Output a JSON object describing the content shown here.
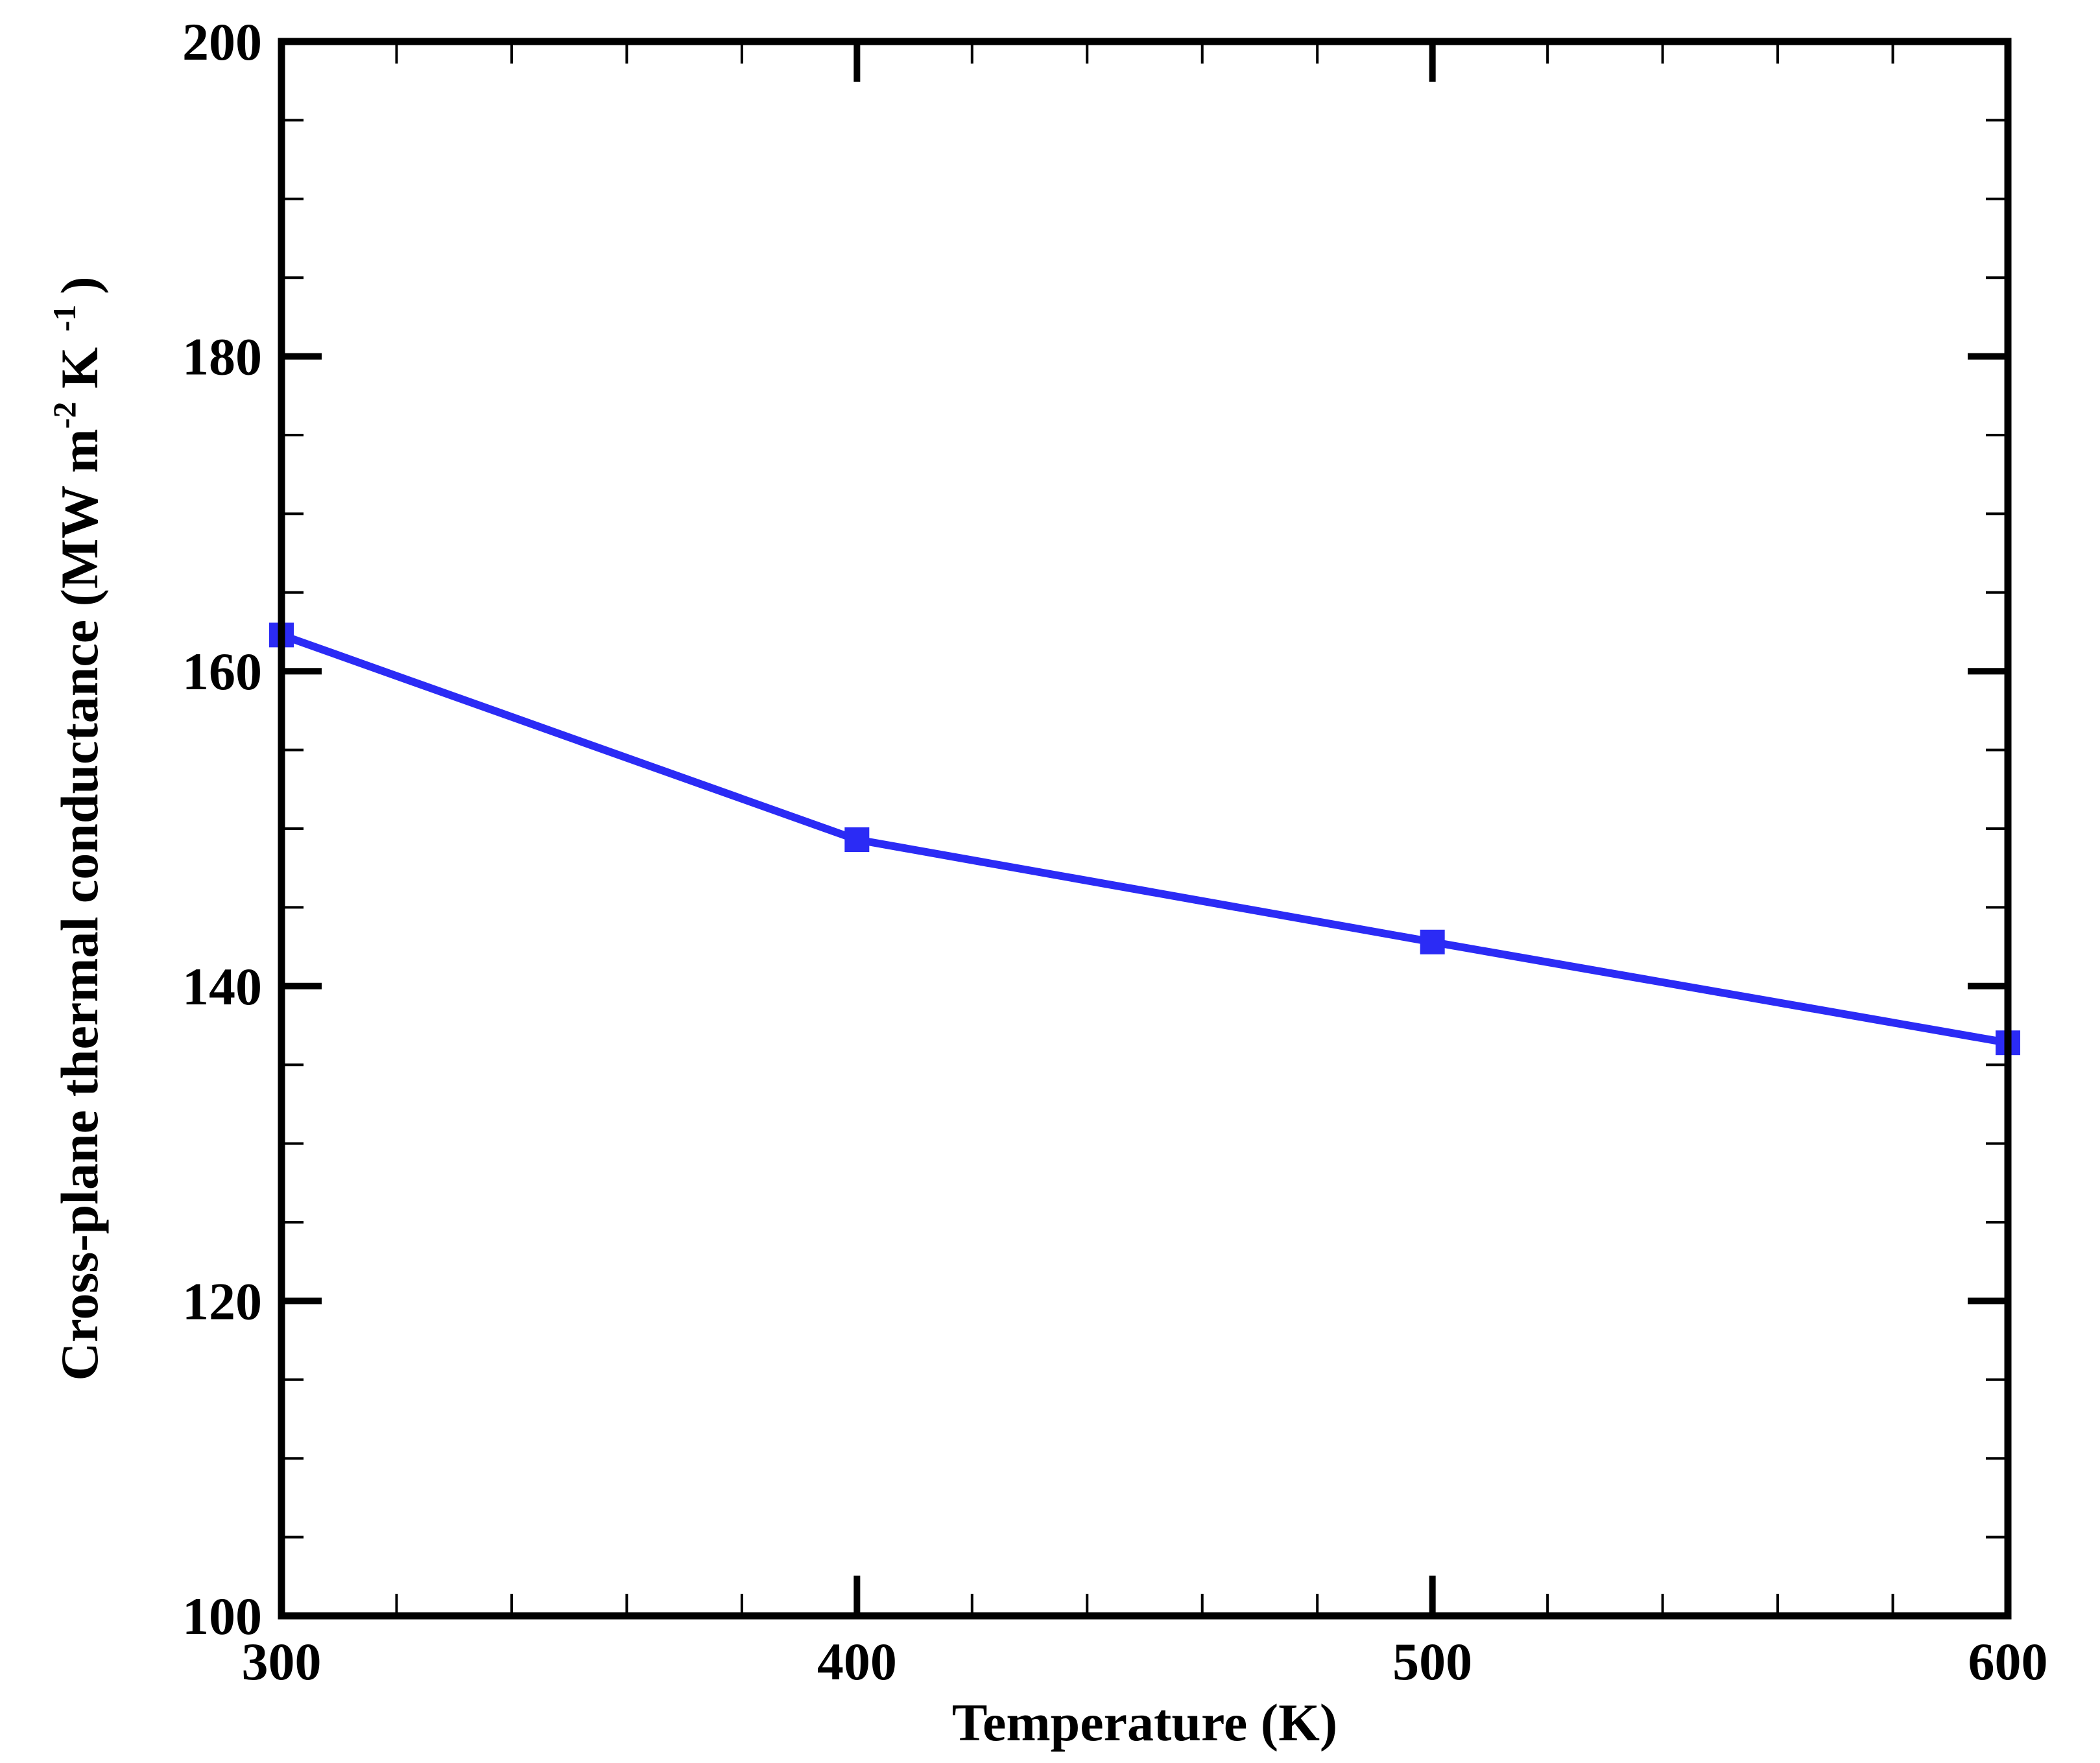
{
  "chart_data": {
    "type": "line",
    "x_axis": {
      "label": "Temperature (K)",
      "range": [
        300,
        600
      ],
      "ticks": [
        300,
        400,
        500,
        600
      ],
      "tick_labels": [
        "300",
        "400",
        "500",
        "600"
      ],
      "minor_step": 20
    },
    "y_axis": {
      "label_main": "Cross-plane thermal conductance (MW m",
      "label_sup1": "-2",
      "label_mid": " K",
      "label_sup2": "-1",
      "label_end": ")",
      "range": [
        100,
        200
      ],
      "ticks": [
        100,
        120,
        140,
        160,
        180,
        200
      ],
      "tick_labels": [
        "100",
        "120",
        "140",
        "160",
        "180",
        "200"
      ],
      "minor_step": 5
    },
    "grid": false,
    "legend": "none",
    "series": [
      {
        "color": "#2b2bf5",
        "marker": "square",
        "x": [
          300,
          400,
          500,
          600
        ],
        "y": [
          162.3,
          149.3,
          142.8,
          136.4
        ]
      }
    ]
  }
}
